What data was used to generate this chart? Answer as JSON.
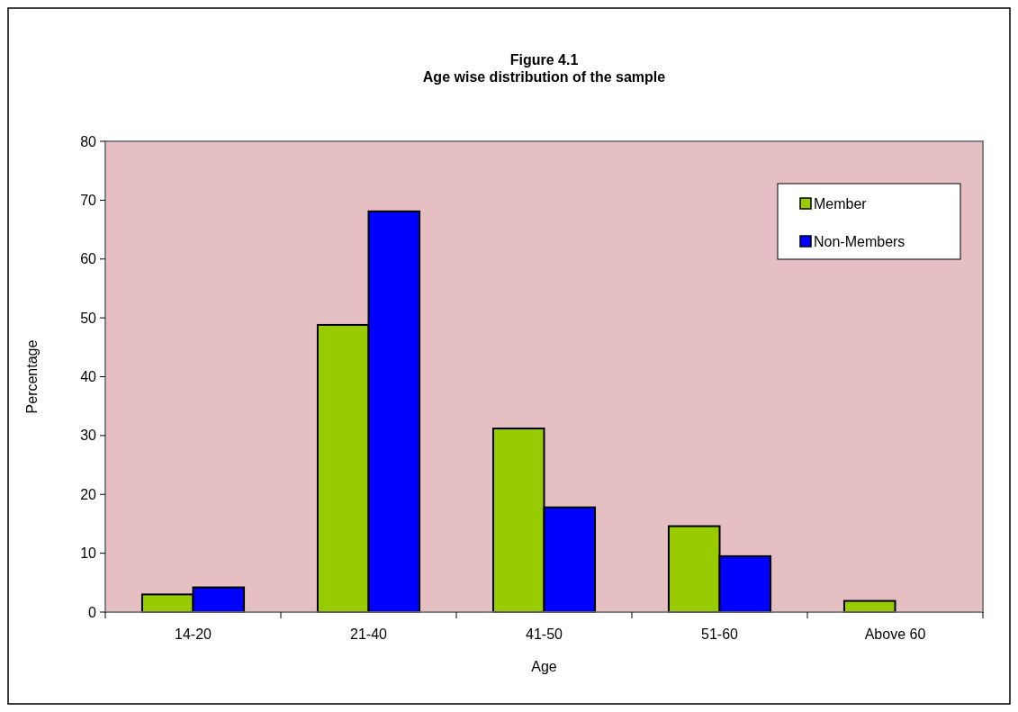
{
  "chart_data": {
    "type": "bar",
    "title": "Figure 4.1\nAge wise distribution of the sample",
    "xlabel": "Age",
    "ylabel": "Percentage",
    "categories": [
      "14-20",
      "21-40",
      "41-50",
      "51-60",
      "Above 60"
    ],
    "series": [
      {
        "name": "Member",
        "color": "#99cc00",
        "values": [
          3.0,
          48.8,
          31.2,
          14.6,
          1.9
        ]
      },
      {
        "name": "Non-Members",
        "color": "#0000ff",
        "values": [
          4.2,
          68.1,
          17.8,
          9.5,
          0
        ]
      }
    ],
    "ylim": [
      0,
      80
    ],
    "yticks": [
      0,
      10,
      20,
      30,
      40,
      50,
      60,
      70,
      80
    ],
    "legend": "top right"
  }
}
